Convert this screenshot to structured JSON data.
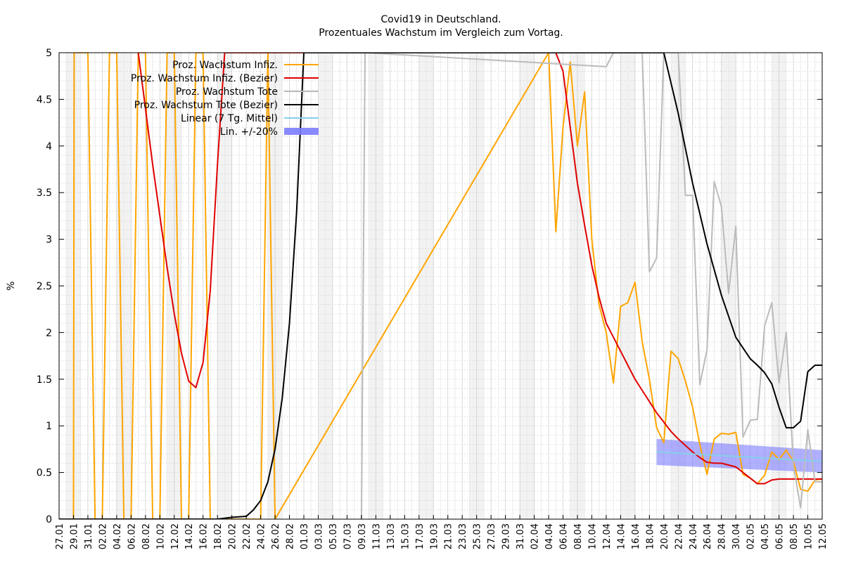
{
  "chart_data": {
    "type": "line",
    "title": "Covid19 in Deutschland.",
    "subtitle": "Prozentuales Wachstum im Vergleich zum Vortag.",
    "xlabel": "",
    "ylabel": "%",
    "ylim": [
      0,
      5
    ],
    "y_ticks": [
      "0",
      "0.5",
      "1",
      "1.5",
      "2",
      "2.5",
      "3",
      "3.5",
      "4",
      "4.5",
      "5"
    ],
    "x_tick_labels": [
      "27.01",
      "29.01",
      "31.01",
      "02.02",
      "04.02",
      "06.02",
      "08.02",
      "10.02",
      "12.02",
      "14.02",
      "16.02",
      "18.02",
      "20.02",
      "22.02",
      "24.02",
      "26.02",
      "28.02",
      "01.03",
      "03.03",
      "05.03",
      "07.03",
      "09.03",
      "11.03",
      "13.03",
      "15.03",
      "17.03",
      "19.03",
      "21.03",
      "23.03",
      "25.03",
      "27.03",
      "29.03",
      "31.03",
      "02.04",
      "04.04",
      "06.04",
      "08.04",
      "10.04",
      "12.04",
      "14.04",
      "16.04",
      "18.04",
      "20.04",
      "22.04",
      "24.04",
      "26.04",
      "28.04",
      "30.04",
      "02.05",
      "04.05",
      "06.05",
      "08.05",
      "10.05",
      "12.05"
    ],
    "x_day_range": [
      0,
      106
    ],
    "grid": "on",
    "legend_position": "top-left",
    "series": [
      {
        "name": "Proz. Wachstum Infiz.",
        "color": "#FFA500",
        "x": [
          0,
          1,
          2,
          2.1,
          4,
          5,
          6,
          7,
          8,
          9,
          10,
          11,
          12,
          13,
          14,
          15,
          16,
          17,
          18,
          19,
          20,
          21,
          22,
          23,
          24,
          25,
          26,
          27,
          28,
          29,
          30,
          68,
          69,
          70,
          71,
          72,
          73,
          74,
          75,
          76,
          77,
          78,
          79,
          80,
          81,
          82,
          83,
          84,
          85,
          86,
          87,
          88,
          89,
          90,
          91,
          92,
          93,
          94,
          95,
          96,
          97,
          98,
          99,
          100,
          101,
          102,
          103,
          104,
          105,
          106
        ],
        "y": [
          0,
          0,
          0,
          5,
          5,
          0,
          0,
          5,
          5,
          0,
          0,
          5,
          5,
          0,
          0,
          5,
          5,
          0,
          0,
          5,
          5,
          0,
          0,
          0,
          0,
          0,
          0,
          0,
          0,
          5,
          0,
          5,
          3.08,
          4.2,
          4.9,
          4.0,
          4.58,
          3.0,
          2.3,
          2.0,
          1.46,
          2.28,
          2.32,
          2.54,
          1.9,
          1.5,
          0.98,
          0.82,
          1.8,
          1.72,
          1.48,
          1.2,
          0.8,
          0.48,
          0.86,
          0.92,
          0.91,
          0.93,
          0.48,
          0.44,
          0.38,
          0.47,
          0.72,
          0.64,
          0.74,
          0.62,
          0.32,
          0.3,
          0.42,
          0.43
        ]
      },
      {
        "name": "Proz. Wachstum Infiz. (Bezier)",
        "color": "#E00000",
        "x": [
          11,
          12,
          13,
          14,
          15,
          16,
          17,
          18,
          19,
          20,
          21,
          22,
          23,
          66,
          67,
          68,
          69,
          70,
          71,
          72,
          73,
          74,
          75,
          76,
          77,
          78,
          79,
          80,
          81,
          82,
          83,
          84,
          85,
          86,
          87,
          88,
          89,
          90,
          91,
          92,
          93,
          94,
          95,
          96,
          97,
          98,
          99,
          100,
          101,
          102,
          103,
          104,
          105,
          106
        ],
        "y": [
          5,
          4.4,
          3.8,
          3.25,
          2.7,
          2.2,
          1.78,
          1.48,
          1.41,
          1.68,
          2.45,
          3.8,
          5,
          5,
          5,
          5,
          5,
          4.8,
          4.2,
          3.6,
          3.15,
          2.72,
          2.38,
          2.1,
          1.95,
          1.8,
          1.65,
          1.5,
          1.38,
          1.26,
          1.14,
          1.04,
          0.94,
          0.86,
          0.79,
          0.72,
          0.66,
          0.61,
          0.6,
          0.6,
          0.58,
          0.56,
          0.5,
          0.44,
          0.38,
          0.38,
          0.42,
          0.43,
          0.43,
          0.43,
          0.43,
          0.43,
          0.43,
          0.43
        ]
      },
      {
        "name": "Proz. Wachstum Tote",
        "color": "#BBBBBB",
        "x": [
          42,
          42.5,
          76,
          77,
          78,
          79,
          80,
          81,
          82,
          83,
          84,
          85,
          86,
          87,
          88,
          89,
          90,
          91,
          92,
          93,
          94,
          95,
          96,
          97,
          98,
          99,
          100,
          101,
          102,
          103,
          104,
          105,
          106
        ],
        "y": [
          0,
          5,
          4.85,
          5,
          5,
          5,
          5,
          5,
          2.65,
          2.8,
          5,
          5,
          5,
          3.47,
          3.47,
          1.44,
          1.82,
          3.62,
          3.35,
          2.42,
          3.14,
          0.88,
          1.06,
          1.07,
          2.07,
          2.32,
          1.46,
          2.0,
          0.58,
          0.12,
          0.96,
          0.4,
          0.4
        ]
      },
      {
        "name": "Proz. Wachstum Tote (Bezier)",
        "color": "#000000",
        "x": [
          0,
          22,
          24,
          26,
          27,
          28,
          29,
          30,
          31,
          32,
          33,
          34,
          35,
          36,
          37,
          84,
          86,
          88,
          90,
          92,
          94,
          96,
          97,
          98,
          99,
          100,
          101,
          102,
          103,
          104,
          105,
          106
        ],
        "y": [
          0,
          0,
          0.02,
          0.03,
          0.1,
          0.2,
          0.4,
          0.75,
          1.3,
          2.1,
          3.3,
          5,
          5,
          5,
          5,
          5,
          4.35,
          3.6,
          2.95,
          2.4,
          1.95,
          1.72,
          1.65,
          1.57,
          1.45,
          1.2,
          0.98,
          0.98,
          1.05,
          1.58,
          1.65,
          1.65
        ]
      },
      {
        "name": "Linear (7 Tg. Mittel)",
        "color": "#87CEEB",
        "x": [
          83,
          106
        ],
        "y": [
          0.72,
          0.62
        ]
      },
      {
        "name": "Lin. +/-20%",
        "color": "#7C7CFF",
        "x": [
          83,
          106
        ],
        "y_low": [
          0.58,
          0.5
        ],
        "y_high": [
          0.86,
          0.74
        ]
      }
    ]
  }
}
